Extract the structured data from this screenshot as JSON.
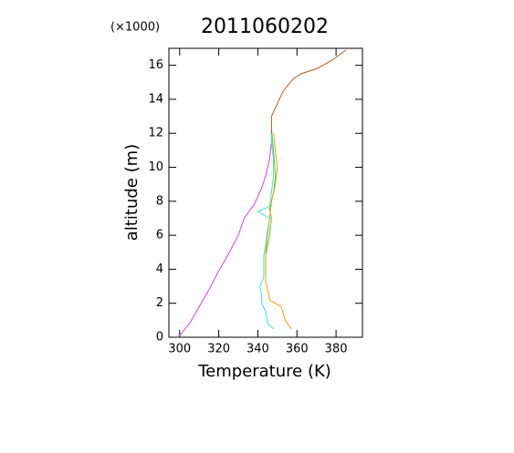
{
  "chart_data": {
    "type": "line",
    "title": "2011060202",
    "y_multiplier": "(×1000)",
    "x_label": "Temperature (K)",
    "y_label": "altitude (m)",
    "xlim": [
      294.5,
      393.5
    ],
    "ylim": [
      0,
      17
    ],
    "xticks": [
      300,
      320,
      340,
      360,
      380
    ],
    "yticks": [
      0,
      2,
      4,
      6,
      8,
      10,
      12,
      14,
      16
    ],
    "series": [
      {
        "color": "#e040e0",
        "x": [
          300,
          305,
          310,
          315,
          320,
          325,
          330,
          333,
          338,
          342,
          344,
          346,
          347,
          347
        ],
        "values": [
          0.1,
          0.8,
          1.8,
          2.8,
          3.9,
          4.9,
          6,
          7,
          7.8,
          8.8,
          9.5,
          10.5,
          11.5,
          12.2
        ]
      },
      {
        "color": "#40e0e0",
        "x": [
          348,
          345,
          344,
          342,
          342,
          341,
          343,
          343,
          344,
          345,
          346,
          340,
          346,
          347,
          348,
          348,
          347,
          347
        ],
        "values": [
          0.5,
          0.8,
          1.5,
          2,
          2.5,
          3,
          3.5,
          4.8,
          5.5,
          6.3,
          7,
          7.4,
          7.7,
          8.5,
          9.5,
          10.5,
          11.5,
          12.2
        ]
      },
      {
        "color": "#40d040",
        "x": [
          344,
          344,
          346,
          347,
          346,
          348,
          349,
          348,
          347
        ],
        "values": [
          3.5,
          4.8,
          6,
          7,
          7.5,
          8.5,
          9.5,
          11,
          12.2
        ]
      },
      {
        "color": "#ff9900",
        "x": [
          357,
          354,
          352,
          346,
          345,
          344,
          344,
          344,
          345,
          346,
          347,
          349,
          350,
          349,
          348
        ],
        "values": [
          0.5,
          1,
          1.8,
          2.2,
          2.8,
          3.2,
          4,
          5,
          6,
          7,
          8,
          9,
          10,
          11,
          12
        ]
      },
      {
        "color": "#b05a20",
        "x": [
          347,
          347,
          349,
          353,
          358,
          362,
          370,
          378,
          385
        ],
        "values": [
          12,
          13,
          13.5,
          14.5,
          15.2,
          15.5,
          15.8,
          16.3,
          16.9
        ]
      }
    ]
  }
}
